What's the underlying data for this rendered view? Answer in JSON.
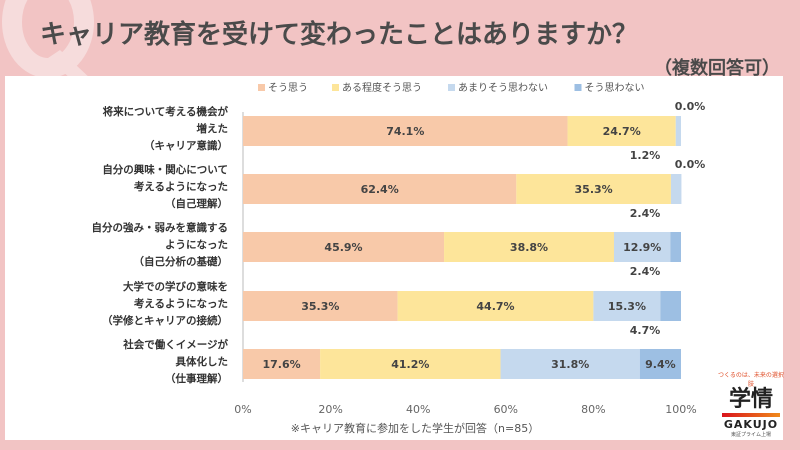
{
  "header": {
    "watermark": "Q",
    "title": "キャリア教育を受けて変わったことはありますか？",
    "subtitle": "（複数回答可）"
  },
  "chart_data": {
    "type": "bar",
    "orientation": "horizontal",
    "stacked": true,
    "categories": [
      [
        "将来について考える機会が",
        "増えた",
        "（キャリア意識）"
      ],
      [
        "自分の興味・関心について",
        "考えるようになった",
        "（自己理解）"
      ],
      [
        "自分の強み・弱みを意識する",
        "ようになった",
        "（自己分析の基礎）"
      ],
      [
        "大学での学びの意味を",
        "考えるようになった",
        "（学修とキャリアの接続）"
      ],
      [
        "社会で働くイメージが",
        "具体化した",
        "（仕事理解）"
      ]
    ],
    "series": [
      {
        "name": "そう思う",
        "color": "#f8c9a9",
        "values": [
          74.1,
          62.4,
          45.9,
          35.3,
          17.6
        ]
      },
      {
        "name": "ある程度そう思う",
        "color": "#fde59a",
        "values": [
          24.7,
          35.3,
          38.8,
          44.7,
          41.2
        ]
      },
      {
        "name": "あまりそう思わない",
        "color": "#c5d9ee",
        "values": [
          1.2,
          2.4,
          12.9,
          15.3,
          31.8
        ]
      },
      {
        "name": "そう思わない",
        "color": "#9dbfe3",
        "values": [
          0.0,
          0.0,
          2.4,
          4.7,
          9.4
        ]
      }
    ],
    "xlim": [
      0,
      100
    ],
    "xticks": [
      "0%",
      "20%",
      "40%",
      "60%",
      "80%",
      "100%"
    ],
    "legend": "top",
    "grid": false,
    "note": "※キャリア教育に参加をした学生が回答（n=85）"
  },
  "logo": {
    "tagline": "つくるのは、未来の選択肢",
    "name": "学情",
    "en": "GAKUJO",
    "listing": "東証プライム上場"
  }
}
